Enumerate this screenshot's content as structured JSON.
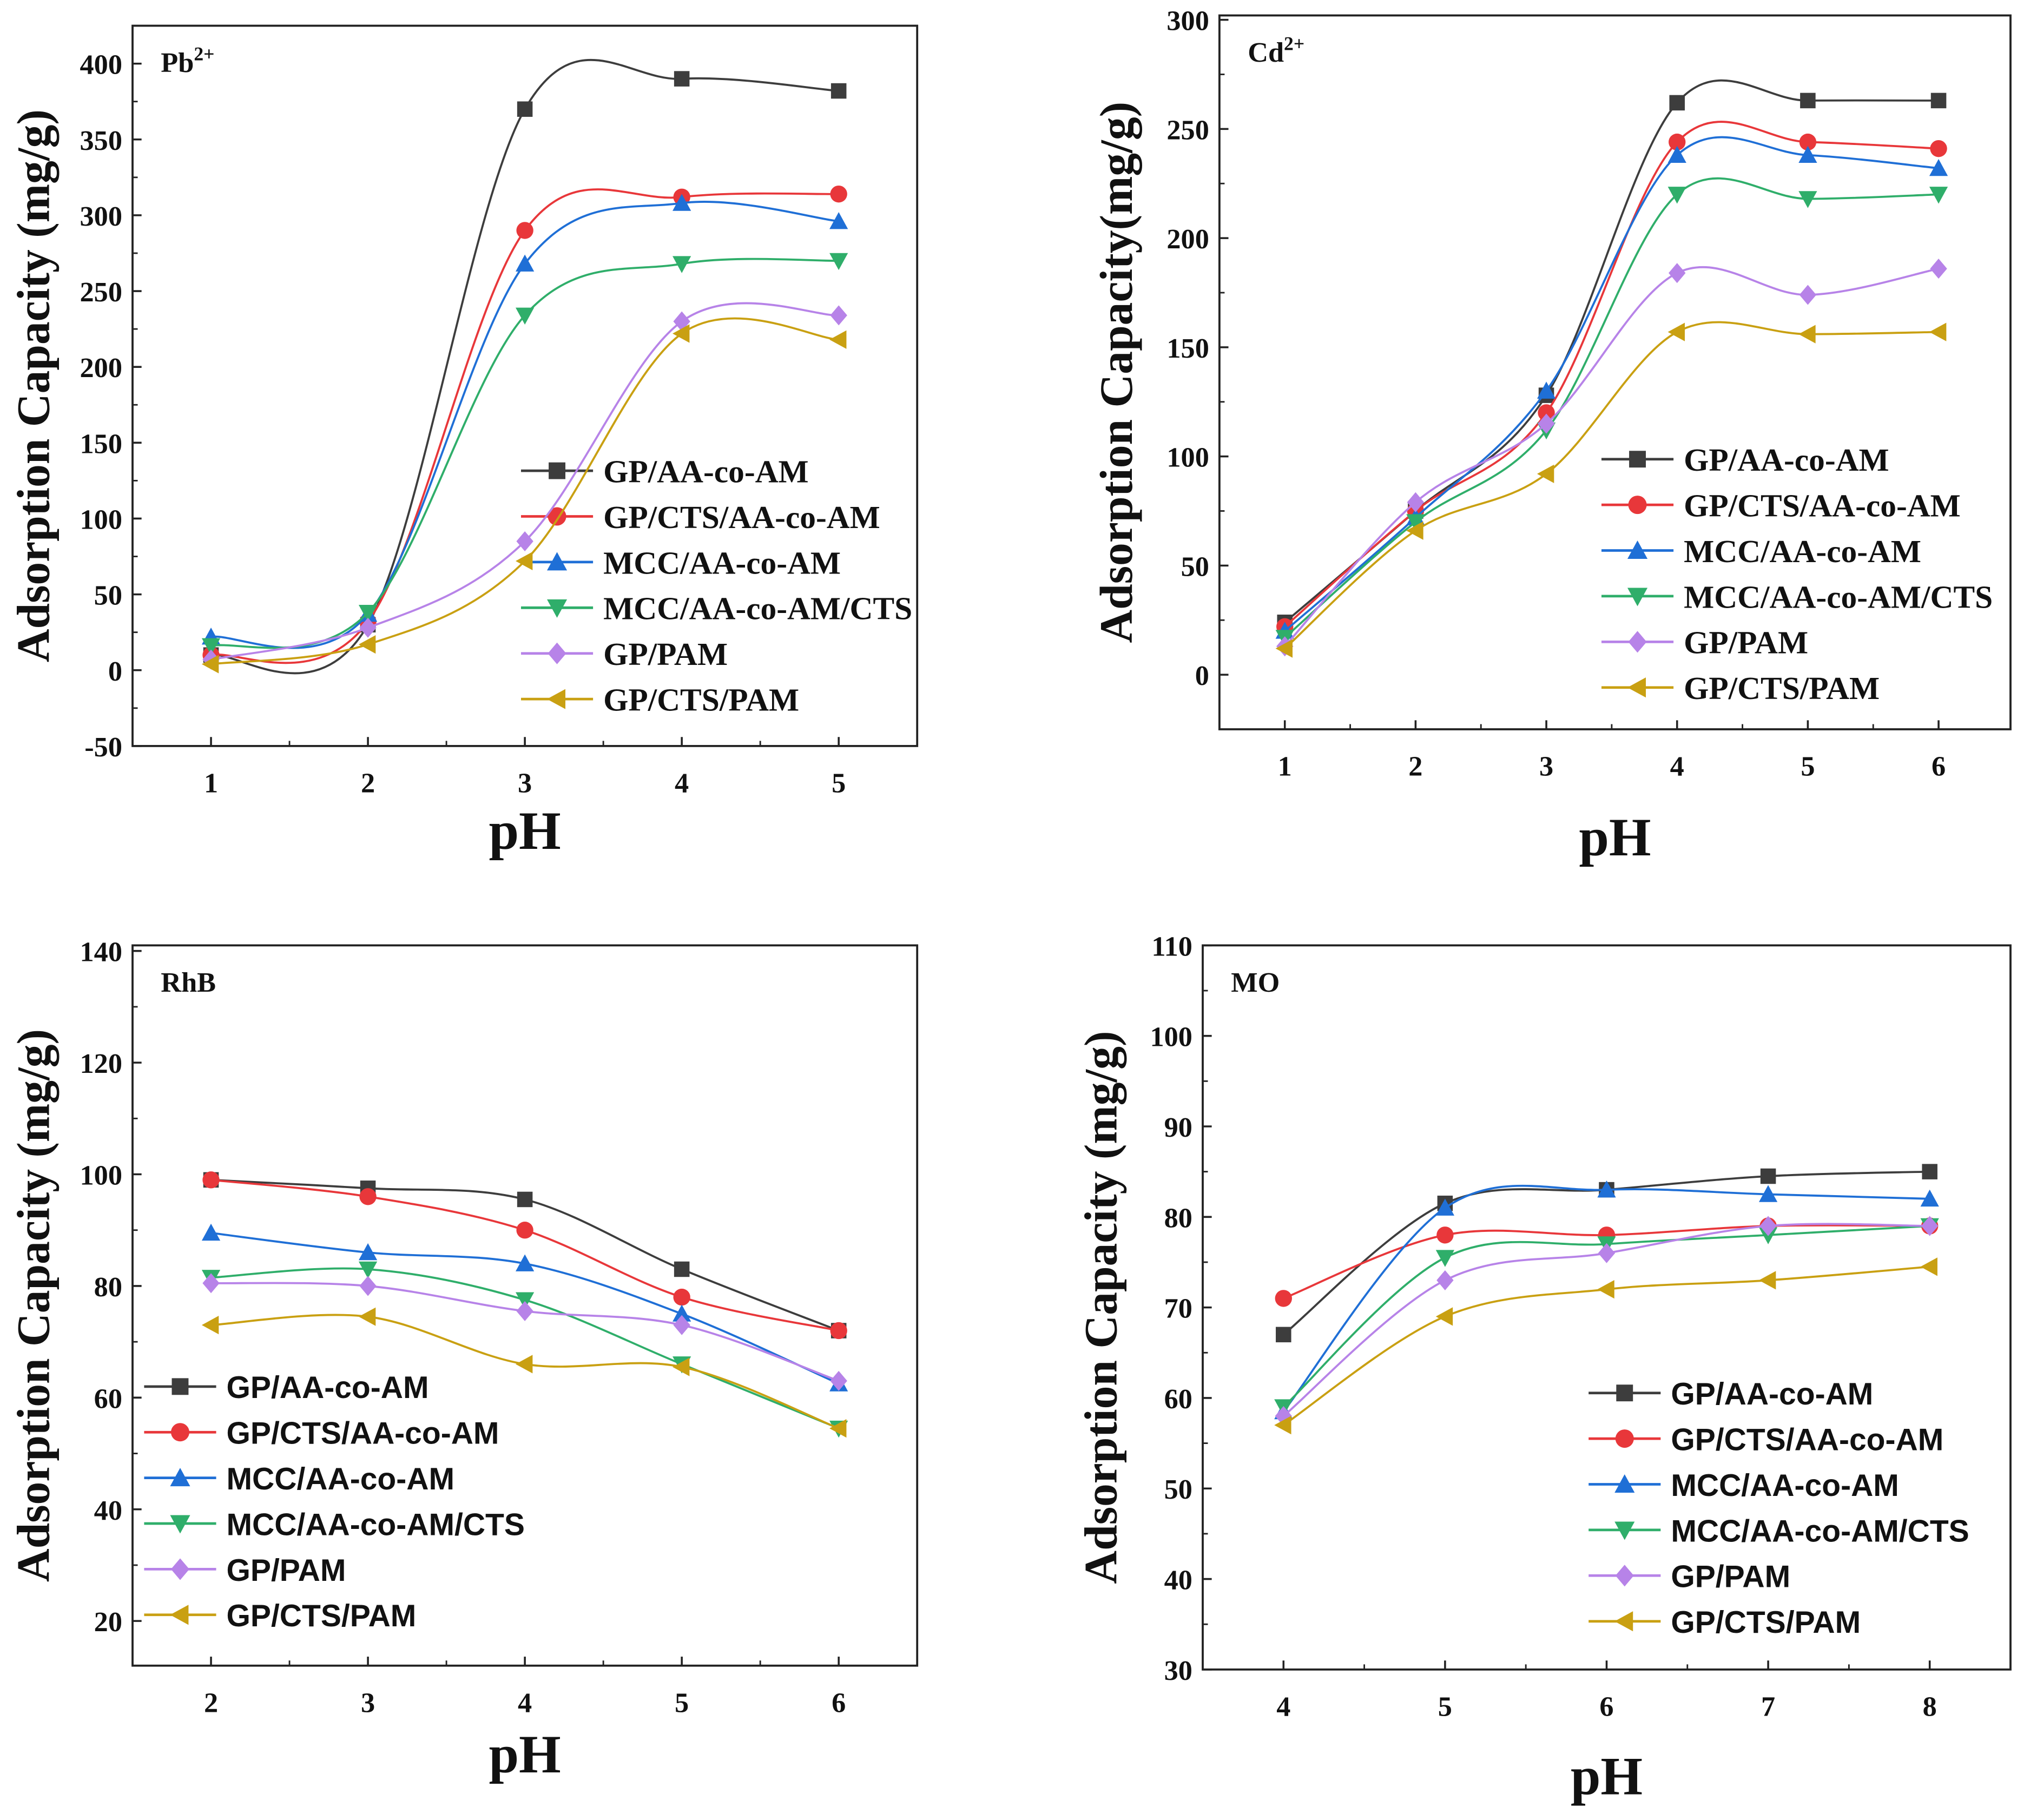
{
  "series_names": [
    "GP/AA-co-AM",
    "GP/CTS/AA-co-AM",
    "MCC/AA-co-AM",
    "MCC/AA-co-AM/CTS",
    "GP/PAM",
    "GP/CTS/PAM"
  ],
  "series_colors": [
    "#3d3d3d",
    "#e8373a",
    "#1f6fd6",
    "#2fae6a",
    "#b783e8",
    "#c9a012"
  ],
  "series_markers": [
    "square",
    "circle",
    "triangle-up",
    "triangle-down",
    "diamond",
    "triangle-left"
  ],
  "chart_data": [
    {
      "type": "line",
      "panel_label": "Pb",
      "panel_label_sup": "2+",
      "xlabel": "pH",
      "ylabel": "Adsorption Capacity (mg/g)",
      "x": [
        1,
        2,
        3,
        4,
        5
      ],
      "xlim": [
        0.5,
        5.5
      ],
      "ylim": [
        -50,
        425
      ],
      "xticks": [
        1,
        2,
        3,
        4,
        5
      ],
      "yticks": [
        -50,
        0,
        50,
        100,
        150,
        200,
        250,
        300,
        350,
        400
      ],
      "legend": "bottom-right",
      "series": [
        {
          "name": "GP/AA-co-AM",
          "values": [
            10,
            30,
            370,
            390,
            382
          ]
        },
        {
          "name": "GP/CTS/AA-co-AM",
          "values": [
            10,
            32,
            290,
            312,
            314
          ]
        },
        {
          "name": "MCC/AA-co-AM",
          "values": [
            22,
            37,
            268,
            308,
            296
          ]
        },
        {
          "name": "MCC/AA-co-AM/CTS",
          "values": [
            16,
            38,
            234,
            268,
            270
          ]
        },
        {
          "name": "GP/PAM",
          "values": [
            7,
            28,
            85,
            230,
            234
          ]
        },
        {
          "name": "GP/CTS/PAM",
          "values": [
            4,
            17,
            72,
            222,
            218
          ]
        }
      ]
    },
    {
      "type": "line",
      "panel_label": "Cd",
      "panel_label_sup": "2+",
      "xlabel": "pH",
      "ylabel": "Adsorption Capacity(mg/g)",
      "x": [
        1,
        2,
        3,
        4,
        5,
        6
      ],
      "xlim": [
        0.5,
        6.55
      ],
      "ylim": [
        -25,
        302
      ],
      "xticks": [
        1,
        2,
        3,
        4,
        5,
        6
      ],
      "yticks": [
        0,
        50,
        100,
        150,
        200,
        250,
        300
      ],
      "legend": "bottom-right",
      "series": [
        {
          "name": "GP/AA-co-AM",
          "values": [
            24,
            75,
            128,
            262,
            263,
            263
          ]
        },
        {
          "name": "GP/CTS/AA-co-AM",
          "values": [
            22,
            75,
            120,
            244,
            244,
            241
          ]
        },
        {
          "name": "MCC/AA-co-AM",
          "values": [
            20,
            72,
            130,
            238,
            238,
            232
          ]
        },
        {
          "name": "MCC/AA-co-AM/CTS",
          "values": [
            17,
            70,
            112,
            220,
            218,
            220
          ]
        },
        {
          "name": "GP/PAM",
          "values": [
            13,
            79,
            115,
            184,
            174,
            186
          ]
        },
        {
          "name": "GP/CTS/PAM",
          "values": [
            12,
            66,
            92,
            157,
            156,
            157
          ]
        }
      ]
    },
    {
      "type": "line",
      "panel_label": "RhB",
      "panel_label_sup": "",
      "xlabel": "pH",
      "ylabel": "Adsorption Capacity (mg/g)",
      "x": [
        2,
        3,
        4,
        5,
        6
      ],
      "xlim": [
        1.5,
        6.5
      ],
      "ylim": [
        12,
        141
      ],
      "xticks": [
        2,
        3,
        4,
        5,
        6
      ],
      "yticks": [
        20,
        40,
        60,
        80,
        100,
        120,
        140
      ],
      "legend": "bottom-left",
      "series": [
        {
          "name": "GP/AA-co-AM",
          "values": [
            99,
            97.5,
            95.5,
            83,
            72
          ]
        },
        {
          "name": "GP/CTS/AA-co-AM",
          "values": [
            99,
            96,
            90,
            78,
            72
          ]
        },
        {
          "name": "MCC/AA-co-AM",
          "values": [
            89.5,
            86,
            84,
            75,
            62.5
          ]
        },
        {
          "name": "MCC/AA-co-AM/CTS",
          "values": [
            81.5,
            83,
            77.5,
            66,
            54.5
          ]
        },
        {
          "name": "GP/PAM",
          "values": [
            80.5,
            80,
            75.5,
            73,
            63
          ]
        },
        {
          "name": "GP/CTS/PAM",
          "values": [
            73,
            74.5,
            66,
            65.5,
            54.5
          ]
        }
      ]
    },
    {
      "type": "line",
      "panel_label": "MO",
      "panel_label_sup": "",
      "xlabel": "pH",
      "ylabel": "Adsorption Capacity (mg/g)",
      "x": [
        4,
        5,
        6,
        7,
        8
      ],
      "xlim": [
        3.5,
        8.5
      ],
      "ylim": [
        30,
        110
      ],
      "xticks": [
        4,
        5,
        6,
        7,
        8
      ],
      "yticks": [
        30,
        40,
        50,
        60,
        70,
        80,
        90,
        100,
        110
      ],
      "legend": "bottom-right",
      "series": [
        {
          "name": "GP/AA-co-AM",
          "values": [
            67,
            81.5,
            83,
            84.5,
            85
          ]
        },
        {
          "name": "GP/CTS/AA-co-AM",
          "values": [
            71,
            78,
            78,
            79,
            79
          ]
        },
        {
          "name": "MCC/AA-co-AM",
          "values": [
            58.5,
            81,
            83,
            82.5,
            82
          ]
        },
        {
          "name": "MCC/AA-co-AM/CTS",
          "values": [
            59,
            75.5,
            77,
            78,
            79
          ]
        },
        {
          "name": "GP/PAM",
          "values": [
            58,
            73,
            76,
            79,
            79
          ]
        },
        {
          "name": "GP/CTS/PAM",
          "values": [
            57,
            69,
            72,
            73,
            74.5
          ]
        }
      ]
    }
  ]
}
